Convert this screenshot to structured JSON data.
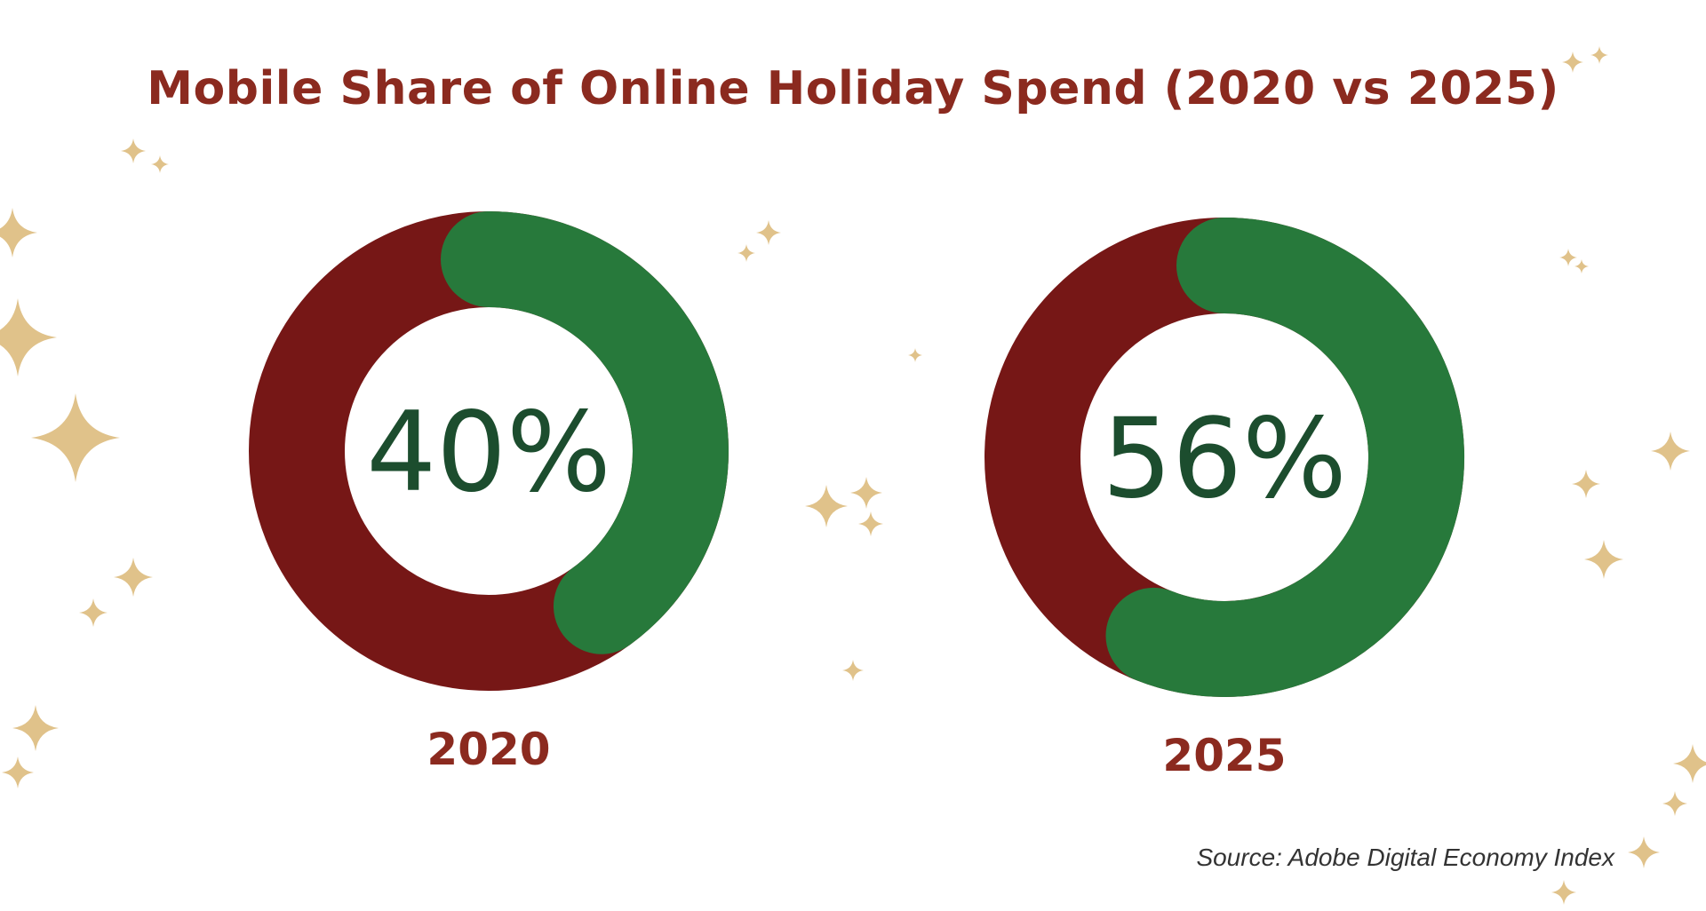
{
  "chart_data": {
    "type": "pie",
    "title": "Mobile Share of Online Holiday Spend (2020 vs 2025)",
    "charts": [
      {
        "label": "2020",
        "value": 40,
        "value_label": "40%"
      },
      {
        "label": "2025",
        "value": 56,
        "value_label": "56%"
      }
    ],
    "source": "Source: Adobe Digital Economy Index",
    "colors": {
      "mobile": "#27793B",
      "remainder": "#761716",
      "value_text": "#1C4D2E",
      "title": "#8B2A1F",
      "sparkles": "#E0C28A"
    }
  }
}
